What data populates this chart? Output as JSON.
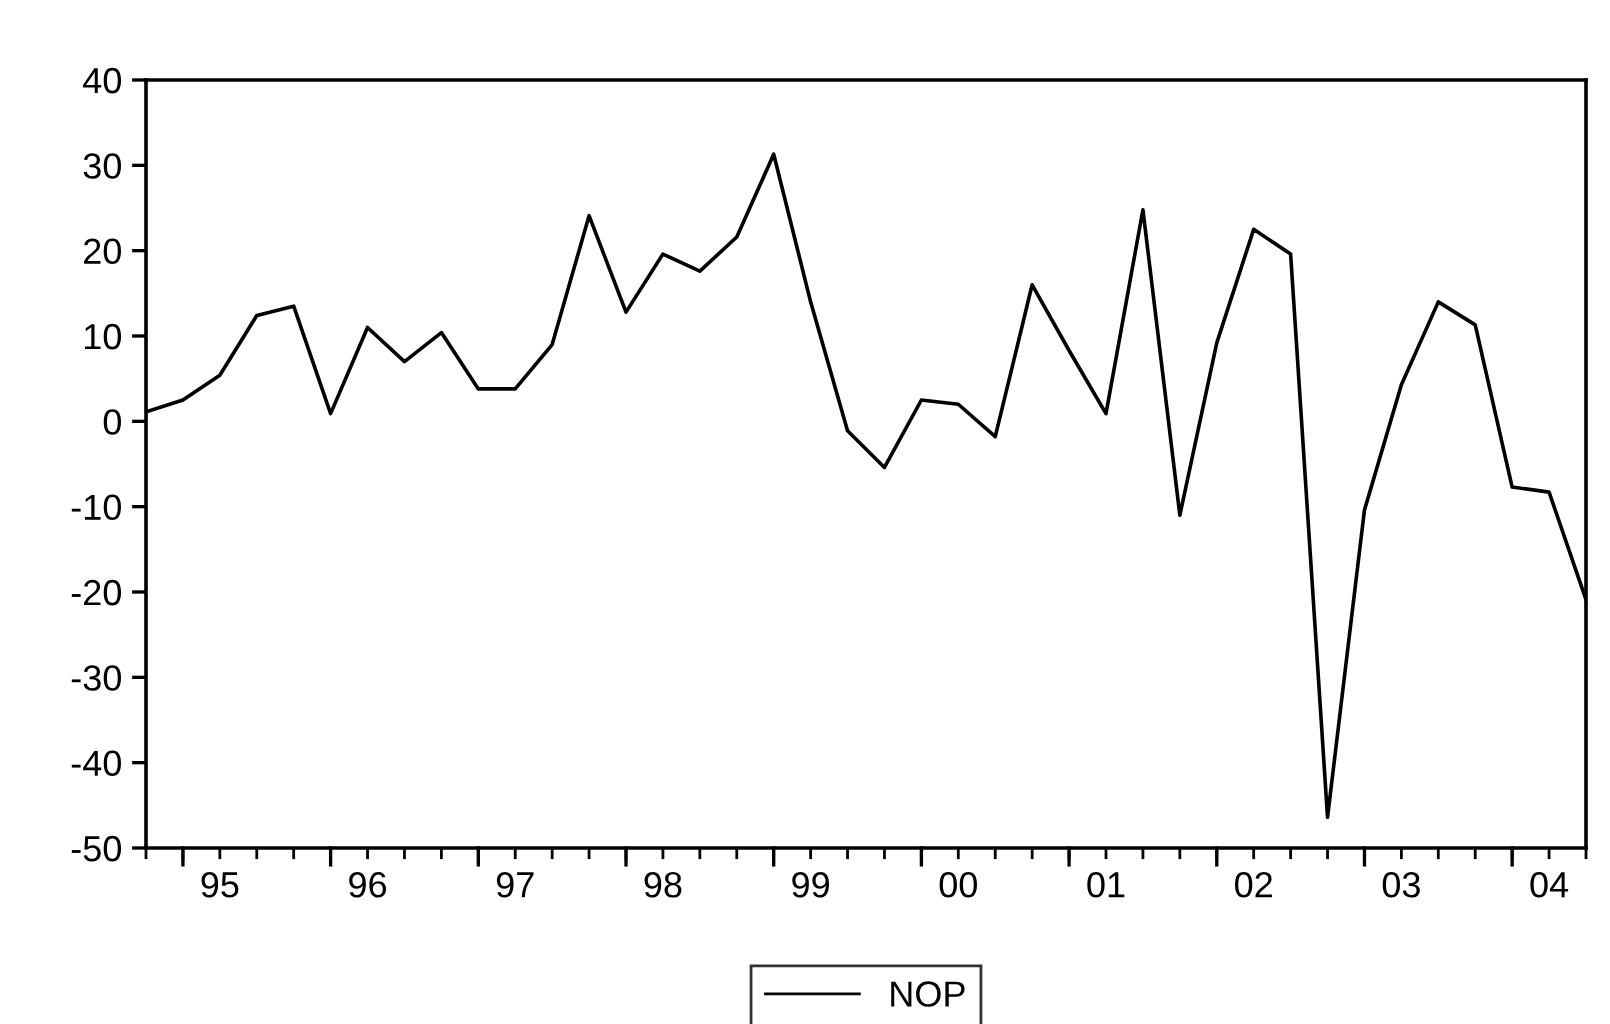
{
  "chart_data": {
    "type": "line",
    "categories": [
      null,
      null,
      "95",
      null,
      null,
      null,
      "96",
      null,
      null,
      null,
      "97",
      null,
      null,
      null,
      "98",
      null,
      null,
      null,
      "99",
      null,
      null,
      null,
      "00",
      null,
      null,
      null,
      "01",
      null,
      null,
      null,
      "02",
      null,
      null,
      null,
      "03",
      null,
      null,
      null,
      "04",
      null
    ],
    "series": [
      {
        "name": "NOP",
        "color": "#000000",
        "values": [
          1.1,
          2.5,
          5.4,
          12.4,
          13.5,
          0.9,
          11.0,
          7.0,
          10.4,
          3.8,
          3.8,
          9.0,
          24.1,
          12.8,
          19.6,
          17.6,
          21.6,
          31.3,
          14.0,
          -1.1,
          -5.4,
          2.5,
          2.0,
          -1.8,
          16.0,
          8.3,
          0.9,
          24.8,
          -11.0,
          9.2,
          22.5,
          19.6,
          -46.4,
          -10.4,
          4.3,
          14.0,
          11.3,
          -7.7,
          -8.3,
          -20.9
        ]
      }
    ],
    "ylim": [
      -50,
      40
    ],
    "yticks": [
      -50,
      -40,
      -30,
      -20,
      -10,
      0,
      10,
      20,
      30,
      40
    ],
    "grid": false,
    "legend": "bottom",
    "line_style": "solid",
    "marker": "none"
  }
}
